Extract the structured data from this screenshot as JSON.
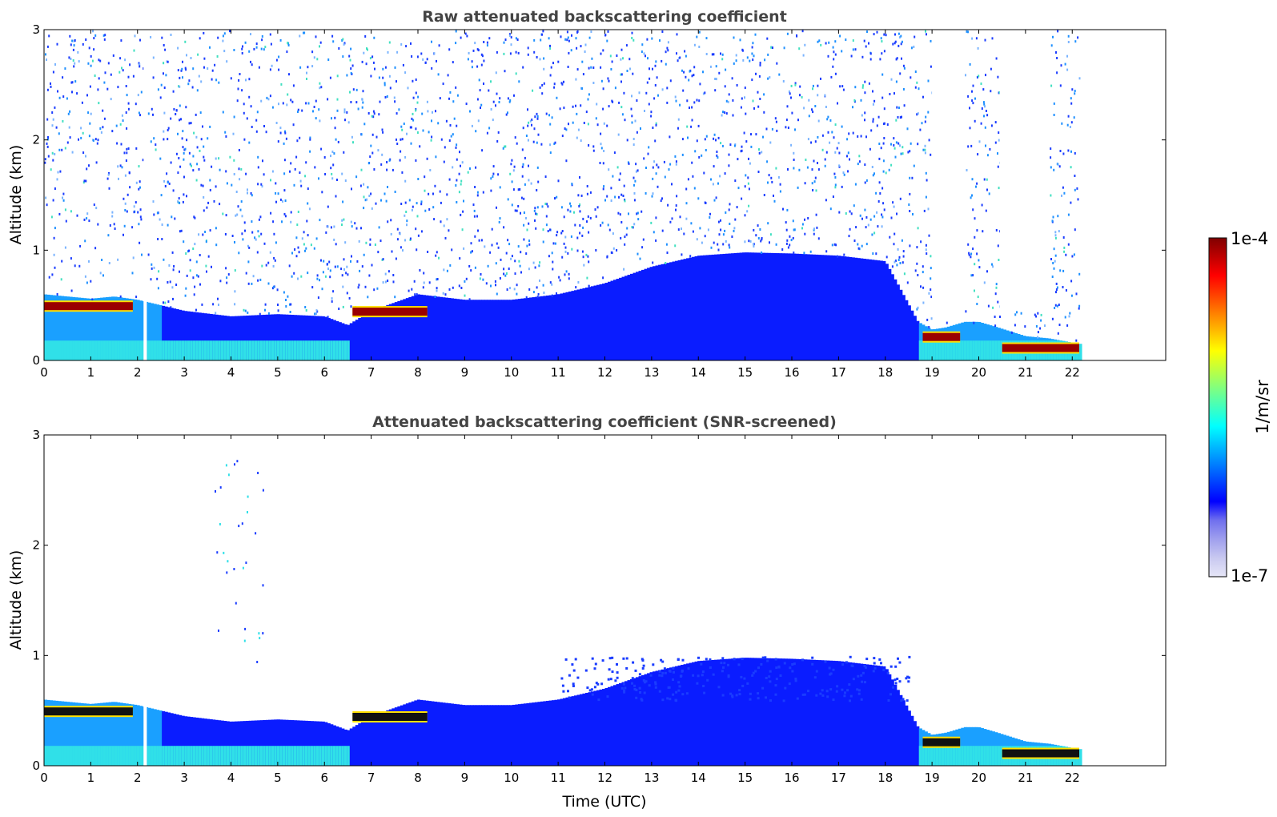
{
  "chart_data": [
    {
      "type": "heatmap",
      "title": "Raw attenuated backscattering coefficient",
      "xlabel": "",
      "ylabel": "Altitude (km)",
      "xlim": [
        0,
        24
      ],
      "ylim": [
        0,
        3
      ],
      "xticks": [
        "0",
        "1",
        "2",
        "3",
        "4",
        "5",
        "6",
        "7",
        "8",
        "9",
        "10",
        "11",
        "12",
        "13",
        "14",
        "15",
        "16",
        "17",
        "18",
        "19",
        "20",
        "21",
        "22"
      ],
      "yticks": [
        "0",
        "1",
        "2",
        "3"
      ],
      "data_end_time": 22.15,
      "screened": false,
      "colormap": "jet",
      "layer_top_km": {
        "time": [
          0,
          0.5,
          1.0,
          1.5,
          2.0,
          3.0,
          4.0,
          5.0,
          6.0,
          6.5,
          7.0,
          8.0,
          9.0,
          10.0,
          11.0,
          12.0,
          13.0,
          14.0,
          15.0,
          16.0,
          17.0,
          18.0,
          18.7,
          19.0,
          19.3,
          19.7,
          20.0,
          20.4,
          21.0,
          21.5,
          22.15
        ],
        "height": [
          0.6,
          0.58,
          0.56,
          0.58,
          0.55,
          0.45,
          0.4,
          0.42,
          0.4,
          0.32,
          0.45,
          0.6,
          0.55,
          0.55,
          0.6,
          0.7,
          0.85,
          0.95,
          0.98,
          0.97,
          0.95,
          0.9,
          0.35,
          0.28,
          0.3,
          0.35,
          0.35,
          0.3,
          0.22,
          0.2,
          0.15
        ]
      },
      "strong_layer_segments": [
        {
          "t0": 0.0,
          "t1": 1.9,
          "altitude_km": 0.5
        },
        {
          "t0": 6.6,
          "t1": 8.2,
          "altitude_km": 0.45
        },
        {
          "t0": 18.8,
          "t1": 19.6,
          "altitude_km": 0.22
        },
        {
          "t0": 20.5,
          "t1": 22.15,
          "altitude_km": 0.12
        }
      ],
      "data_gaps": [
        {
          "t0": 2.13,
          "t1": 2.2
        },
        {
          "t0": 19.0,
          "t1": 19.7,
          "min_altitude_km": 0.4
        },
        {
          "t0": 20.45,
          "t1": 21.5,
          "min_altitude_km": 0.45
        }
      ]
    },
    {
      "type": "heatmap",
      "title": "Attenuated backscattering coefficient (SNR-screened)",
      "xlabel": "Time (UTC)",
      "ylabel": "Altitude (km)",
      "xlim": [
        0,
        24
      ],
      "ylim": [
        0,
        3
      ],
      "xticks": [
        "0",
        "1",
        "2",
        "3",
        "4",
        "5",
        "6",
        "7",
        "8",
        "9",
        "10",
        "11",
        "12",
        "13",
        "14",
        "15",
        "16",
        "17",
        "18",
        "19",
        "20",
        "21",
        "22"
      ],
      "yticks": [
        "0",
        "1",
        "2",
        "3"
      ],
      "data_end_time": 22.15,
      "screened": true,
      "colormap": "jet",
      "strong_layer_segments": [
        {
          "t0": 0.0,
          "t1": 1.9,
          "altitude_km": 0.5
        },
        {
          "t0": 6.6,
          "t1": 8.2,
          "altitude_km": 0.45
        },
        {
          "t0": 18.8,
          "t1": 19.6,
          "altitude_km": 0.22
        },
        {
          "t0": 20.5,
          "t1": 22.15,
          "altitude_km": 0.12
        }
      ]
    }
  ],
  "colorbar": {
    "label": "1/m/sr",
    "max_label": "1e-4",
    "min_label": "1e-7",
    "scale": "log",
    "range": [
      1e-07,
      0.0001
    ],
    "colors": [
      "#e6e6f7",
      "#c8c8f0",
      "#9f9fee",
      "#6f6fee",
      "#0000ff",
      "#0040ff",
      "#0080ff",
      "#00bfff",
      "#00ffff",
      "#40ffbf",
      "#80ff80",
      "#bfff40",
      "#ffff00",
      "#ffbf00",
      "#ff8000",
      "#ff4000",
      "#ff0000",
      "#bf0000",
      "#800000"
    ]
  }
}
